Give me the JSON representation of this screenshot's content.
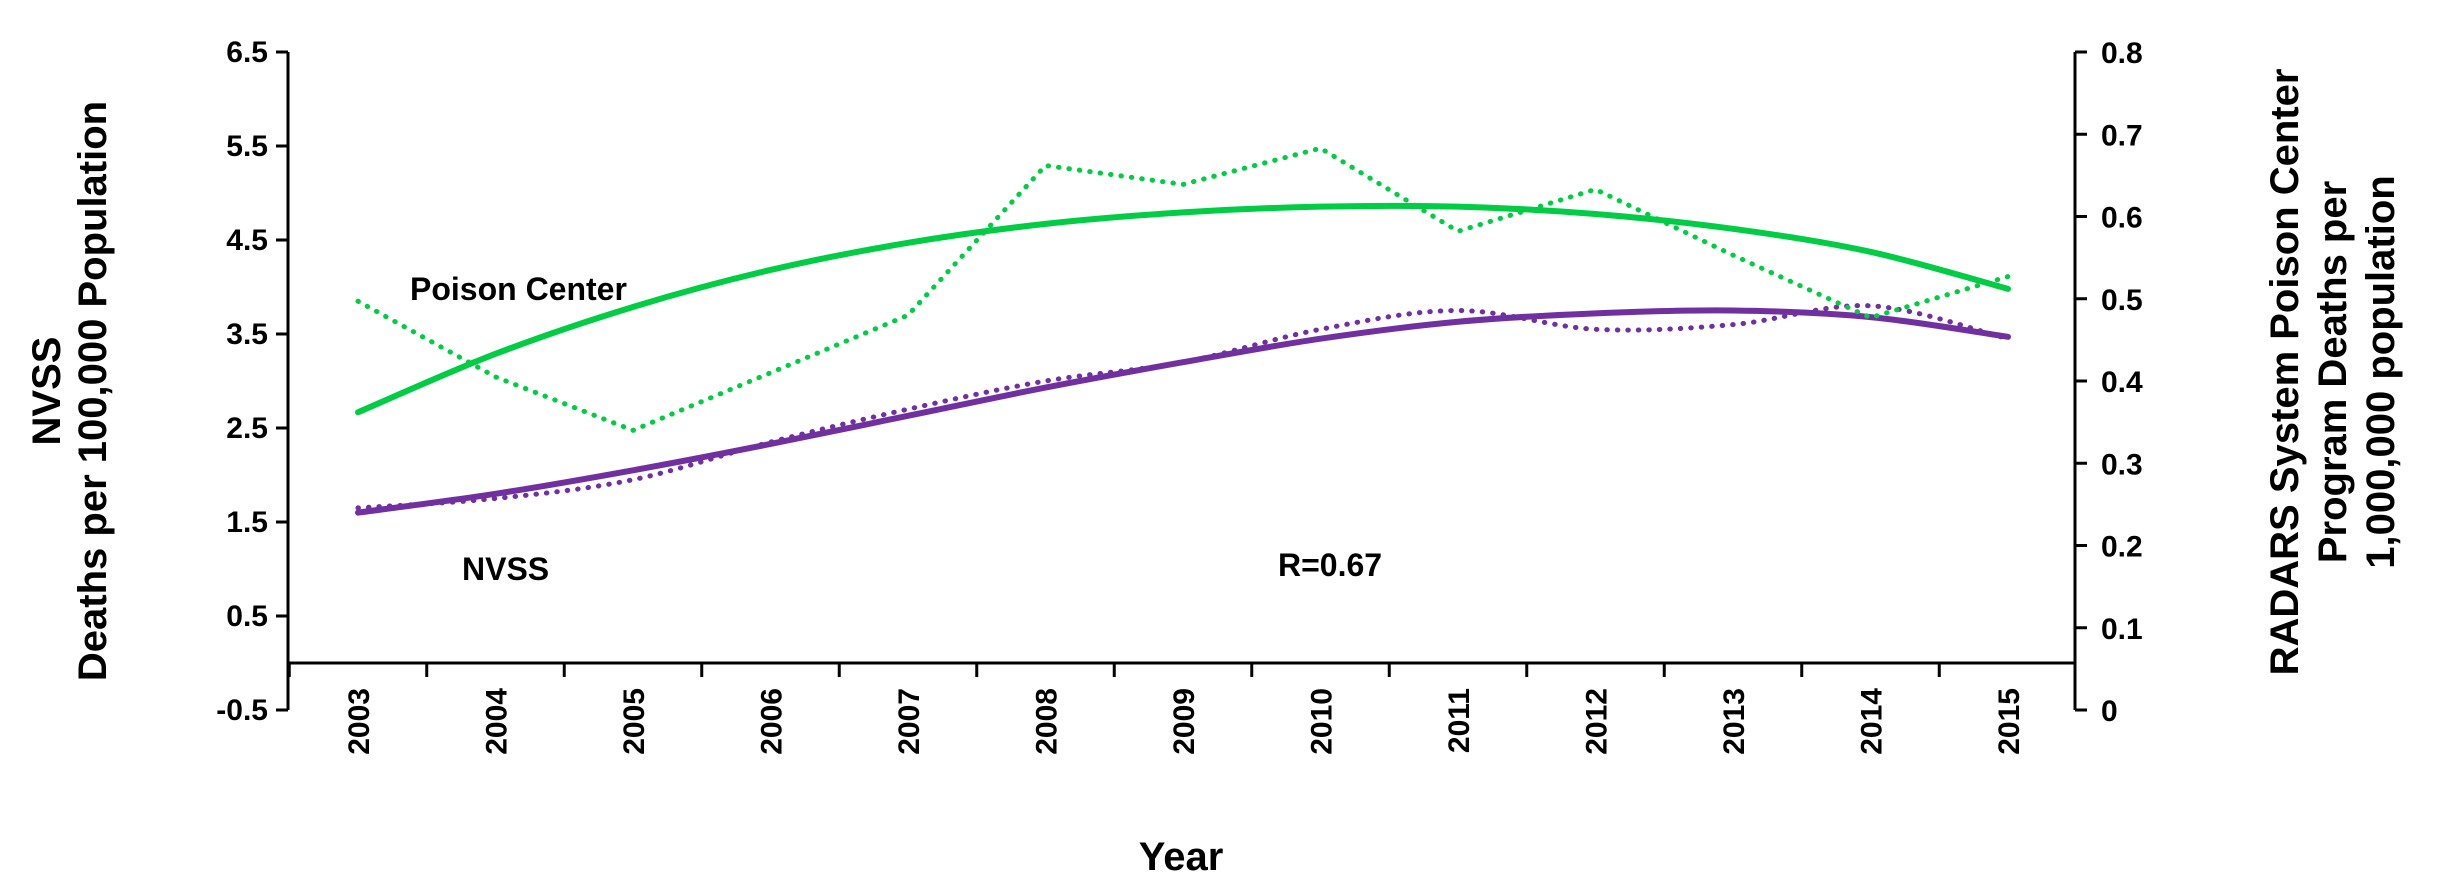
{
  "chart_data": {
    "type": "line",
    "x": [
      "2003",
      "2004",
      "2005",
      "2006",
      "2007",
      "2008",
      "2009",
      "2010",
      "2011",
      "2012",
      "2013",
      "2014",
      "2015"
    ],
    "xlabel": "Year",
    "ylabel_left": [
      "NVSS",
      "Deaths per 100,000 Population"
    ],
    "ylabel_right": [
      "RADARS System Poison Center",
      "Program Deaths per",
      "1,000,000 population"
    ],
    "yleft": {
      "lim": [
        -0.5,
        6.5
      ],
      "ticks": [
        "6.5",
        "5.5",
        "4.5",
        "3.5",
        "2.5",
        "1.5",
        "0.5",
        "-0.5"
      ]
    },
    "yright": {
      "lim": [
        0,
        0.8
      ],
      "ticks": [
        "0.8",
        "0.7",
        "0.6",
        "0.5",
        "0.4",
        "0.3",
        "0.2",
        "0.1",
        "0"
      ]
    },
    "grid": false,
    "series": [
      {
        "name": "NVSS",
        "axis": "left",
        "style": "dotted",
        "color": "#7030A0",
        "values": [
          1.65,
          1.75,
          1.95,
          2.35,
          2.7,
          3.0,
          3.2,
          3.55,
          3.75,
          3.55,
          3.6,
          3.8,
          3.45
        ]
      },
      {
        "name": "NVSS",
        "axis": "left",
        "style": "trend",
        "color": "#7030A0",
        "values": [
          1.6,
          1.8,
          2.05,
          2.33,
          2.63,
          2.93,
          3.2,
          3.45,
          3.63,
          3.72,
          3.75,
          3.68,
          3.47
        ]
      },
      {
        "name": "Poison Center",
        "axis": "right",
        "style": "dotted",
        "color": "#00CC44",
        "values": [
          0.497,
          0.405,
          0.34,
          0.41,
          0.48,
          0.662,
          0.639,
          0.683,
          0.582,
          0.633,
          0.553,
          0.477,
          0.527
        ]
      },
      {
        "name": "Poison Center",
        "axis": "right",
        "style": "trend",
        "color": "#00CC44",
        "values": [
          0.362,
          0.433,
          0.49,
          0.535,
          0.568,
          0.591,
          0.605,
          0.612,
          0.612,
          0.603,
          0.585,
          0.557,
          0.512
        ]
      }
    ],
    "annotations": {
      "poison_label": "Poison Center",
      "nvss_label": "NVSS",
      "r_label": "R=0.67"
    }
  }
}
